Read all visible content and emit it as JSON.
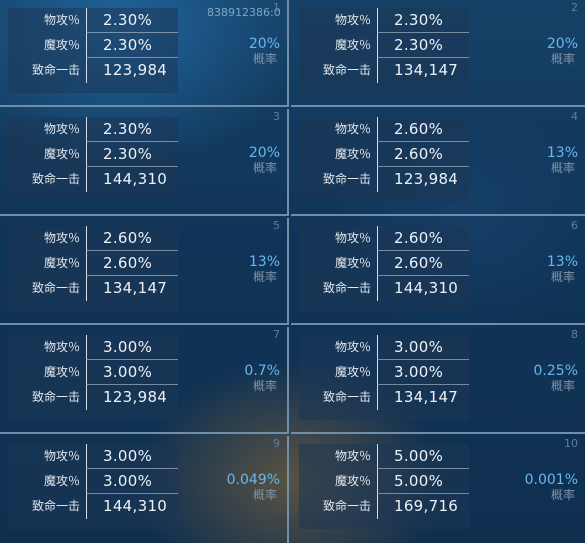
{
  "header": {
    "uid": "838912386:0"
  },
  "labels": {
    "phys": "物攻％",
    "magic": "魔攻％",
    "crit": "致命一击",
    "prob": "概率"
  },
  "cells": [
    {
      "index": "1",
      "phys": "2.30%",
      "magic": "2.30%",
      "crit": "123,984",
      "chance": "20%"
    },
    {
      "index": "2",
      "phys": "2.30%",
      "magic": "2.30%",
      "crit": "134,147",
      "chance": "20%"
    },
    {
      "index": "3",
      "phys": "2.30%",
      "magic": "2.30%",
      "crit": "144,310",
      "chance": "20%"
    },
    {
      "index": "4",
      "phys": "2.60%",
      "magic": "2.60%",
      "crit": "123,984",
      "chance": "13%"
    },
    {
      "index": "5",
      "phys": "2.60%",
      "magic": "2.60%",
      "crit": "134,147",
      "chance": "13%"
    },
    {
      "index": "6",
      "phys": "2.60%",
      "magic": "2.60%",
      "crit": "144,310",
      "chance": "13%"
    },
    {
      "index": "7",
      "phys": "3.00%",
      "magic": "3.00%",
      "crit": "123,984",
      "chance": "0.7%"
    },
    {
      "index": "8",
      "phys": "3.00%",
      "magic": "3.00%",
      "crit": "134,147",
      "chance": "0.25%"
    },
    {
      "index": "9",
      "phys": "3.00%",
      "magic": "3.00%",
      "crit": "144,310",
      "chance": "0.049%"
    },
    {
      "index": "10",
      "phys": "5.00%",
      "magic": "5.00%",
      "crit": "169,716",
      "chance": "0.001%"
    }
  ]
}
